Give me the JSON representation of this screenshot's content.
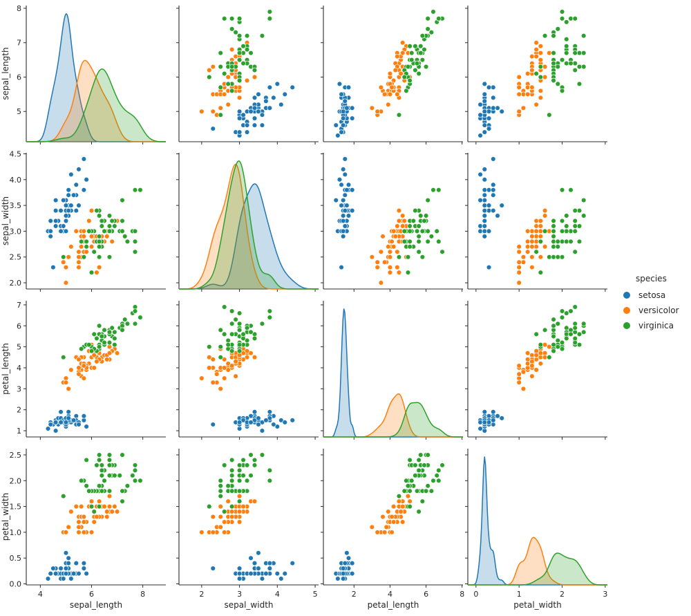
{
  "chart_data": {
    "type": "scatter",
    "subtype": "pairplot",
    "diagonal": "kde",
    "title": "",
    "variables": [
      "sepal_length",
      "sepal_width",
      "petal_length",
      "petal_width"
    ],
    "legend": {
      "title": "species",
      "position": "right",
      "entries": [
        {
          "label": "setosa",
          "color": "#1f77b4"
        },
        {
          "label": "versicolor",
          "color": "#ff7f0e"
        },
        {
          "label": "virginica",
          "color": "#2ca02c"
        }
      ]
    },
    "axes": {
      "sepal_length": {
        "x_range": [
          3.45,
          8.9
        ],
        "y_range": [
          4.12,
          8.08
        ],
        "x_ticks": [
          4,
          6,
          8
        ],
        "x_tick_labels": [
          "4",
          "6",
          "8"
        ],
        "y_ticks": [
          5,
          6,
          7,
          8
        ],
        "y_tick_labels": [
          "5",
          "6",
          "7",
          "8"
        ]
      },
      "sepal_width": {
        "x_range": [
          1.4,
          5.09
        ],
        "y_range": [
          1.88,
          4.52
        ],
        "x_ticks": [
          2,
          3,
          4,
          5
        ],
        "x_tick_labels": [
          "2",
          "3",
          "4",
          "5"
        ],
        "y_ticks": [
          2,
          2.5,
          3,
          3.5,
          4,
          4.5
        ],
        "y_tick_labels": [
          "2.0",
          "2.5",
          "3.0",
          "3.5",
          "4.0",
          "4.5"
        ]
      },
      "petal_length": {
        "x_range": [
          0.3,
          8.05
        ],
        "y_range": [
          0.705,
          7.195
        ],
        "x_ticks": [
          2,
          4,
          6,
          8
        ],
        "x_tick_labels": [
          "2",
          "4",
          "6",
          "8"
        ],
        "y_ticks": [
          1,
          2,
          3,
          4,
          5,
          6,
          7
        ],
        "y_tick_labels": [
          "1",
          "2",
          "3",
          "4",
          "5",
          "6",
          "7"
        ]
      },
      "petal_width": {
        "x_range": [
          -0.19,
          3.05
        ],
        "y_range": [
          -0.02,
          2.62
        ],
        "x_ticks": [
          0,
          1,
          2,
          3
        ],
        "x_tick_labels": [
          "0",
          "1",
          "2",
          "3"
        ],
        "y_ticks": [
          0,
          0.5,
          1,
          1.5,
          2,
          2.5
        ],
        "y_tick_labels": [
          "0.0",
          "0.5",
          "1.0",
          "1.5",
          "2.0",
          "2.5"
        ]
      }
    },
    "series": [
      {
        "name": "setosa",
        "color": "#1f77b4",
        "data": {
          "sepal_length": [
            5.1,
            4.9,
            4.7,
            4.6,
            5.0,
            5.4,
            4.6,
            5.0,
            4.4,
            4.9,
            5.4,
            4.8,
            4.8,
            4.3,
            5.8,
            5.7,
            5.4,
            5.1,
            5.7,
            5.1,
            5.4,
            5.1,
            4.6,
            5.1,
            4.8,
            5.0,
            5.0,
            5.2,
            5.2,
            4.7,
            4.8,
            5.4,
            5.2,
            5.5,
            4.9,
            5.0,
            5.5,
            4.9,
            4.4,
            5.1,
            5.0,
            4.5,
            4.4,
            5.0,
            5.1,
            4.8,
            5.1,
            4.6,
            5.3,
            5.0
          ],
          "sepal_width": [
            3.5,
            3.0,
            3.2,
            3.1,
            3.6,
            3.9,
            3.4,
            3.4,
            2.9,
            3.1,
            3.7,
            3.4,
            3.0,
            3.0,
            4.0,
            4.4,
            3.9,
            3.5,
            3.8,
            3.8,
            3.4,
            3.7,
            3.6,
            3.3,
            3.4,
            3.0,
            3.4,
            3.5,
            3.4,
            3.2,
            3.1,
            3.4,
            4.1,
            4.2,
            3.1,
            3.2,
            3.5,
            3.6,
            3.0,
            3.4,
            3.5,
            2.3,
            3.2,
            3.5,
            3.8,
            3.0,
            3.8,
            3.2,
            3.7,
            3.3
          ],
          "petal_length": [
            1.4,
            1.4,
            1.3,
            1.5,
            1.4,
            1.7,
            1.4,
            1.5,
            1.4,
            1.5,
            1.5,
            1.6,
            1.4,
            1.1,
            1.2,
            1.5,
            1.3,
            1.4,
            1.7,
            1.5,
            1.7,
            1.5,
            1.0,
            1.7,
            1.9,
            1.6,
            1.6,
            1.5,
            1.4,
            1.6,
            1.6,
            1.5,
            1.5,
            1.4,
            1.5,
            1.2,
            1.3,
            1.4,
            1.3,
            1.5,
            1.3,
            1.3,
            1.3,
            1.6,
            1.9,
            1.4,
            1.6,
            1.4,
            1.5,
            1.4
          ],
          "petal_width": [
            0.2,
            0.2,
            0.2,
            0.2,
            0.2,
            0.4,
            0.3,
            0.2,
            0.2,
            0.1,
            0.2,
            0.2,
            0.1,
            0.1,
            0.2,
            0.4,
            0.4,
            0.3,
            0.3,
            0.3,
            0.2,
            0.4,
            0.2,
            0.5,
            0.2,
            0.2,
            0.4,
            0.2,
            0.2,
            0.2,
            0.2,
            0.4,
            0.1,
            0.2,
            0.2,
            0.2,
            0.2,
            0.1,
            0.2,
            0.2,
            0.3,
            0.3,
            0.2,
            0.6,
            0.4,
            0.3,
            0.2,
            0.2,
            0.2,
            0.2
          ]
        }
      },
      {
        "name": "versicolor",
        "color": "#ff7f0e",
        "data": {
          "sepal_length": [
            7.0,
            6.4,
            6.9,
            5.5,
            6.5,
            5.7,
            6.3,
            4.9,
            6.6,
            5.2,
            5.0,
            5.9,
            6.0,
            6.1,
            5.6,
            6.7,
            5.6,
            5.8,
            6.2,
            5.6,
            5.9,
            6.1,
            6.3,
            6.1,
            6.4,
            6.6,
            6.8,
            6.7,
            6.0,
            5.7,
            5.5,
            5.5,
            5.8,
            6.0,
            5.4,
            6.0,
            6.7,
            6.3,
            5.6,
            5.5,
            5.5,
            6.1,
            5.8,
            5.0,
            5.6,
            5.7,
            5.7,
            6.2,
            5.1,
            5.7
          ],
          "sepal_width": [
            3.2,
            3.2,
            3.1,
            2.3,
            2.8,
            2.8,
            3.3,
            2.4,
            2.9,
            2.7,
            2.0,
            3.0,
            2.2,
            2.9,
            2.9,
            3.1,
            3.0,
            2.7,
            2.2,
            2.5,
            3.2,
            2.8,
            2.5,
            2.8,
            2.9,
            3.0,
            2.8,
            3.0,
            2.9,
            2.6,
            2.4,
            2.4,
            2.7,
            2.7,
            3.0,
            3.4,
            3.1,
            2.3,
            3.0,
            2.5,
            2.6,
            3.0,
            2.6,
            2.3,
            2.7,
            3.0,
            2.9,
            2.9,
            2.5,
            2.8
          ],
          "petal_length": [
            4.7,
            4.5,
            4.9,
            4.0,
            4.6,
            4.5,
            4.7,
            3.3,
            4.6,
            3.9,
            3.5,
            4.2,
            4.0,
            4.7,
            3.6,
            4.4,
            4.5,
            4.1,
            4.5,
            3.9,
            4.8,
            4.0,
            4.9,
            4.7,
            4.3,
            4.4,
            4.8,
            5.0,
            4.5,
            3.5,
            3.8,
            3.7,
            3.9,
            5.1,
            4.5,
            4.5,
            4.7,
            4.4,
            4.1,
            4.0,
            4.4,
            4.6,
            4.0,
            3.3,
            4.2,
            4.2,
            4.2,
            4.3,
            3.0,
            4.1
          ],
          "petal_width": [
            1.4,
            1.5,
            1.5,
            1.3,
            1.5,
            1.3,
            1.6,
            1.0,
            1.3,
            1.4,
            1.0,
            1.5,
            1.0,
            1.4,
            1.3,
            1.4,
            1.5,
            1.0,
            1.5,
            1.1,
            1.8,
            1.3,
            1.5,
            1.2,
            1.3,
            1.4,
            1.4,
            1.7,
            1.5,
            1.0,
            1.1,
            1.0,
            1.2,
            1.6,
            1.5,
            1.6,
            1.5,
            1.3,
            1.3,
            1.3,
            1.2,
            1.4,
            1.2,
            1.0,
            1.3,
            1.2,
            1.3,
            1.3,
            1.1,
            1.3
          ]
        }
      },
      {
        "name": "virginica",
        "color": "#2ca02c",
        "data": {
          "sepal_length": [
            6.3,
            5.8,
            7.1,
            6.3,
            6.5,
            7.6,
            4.9,
            7.3,
            6.7,
            7.2,
            6.5,
            6.4,
            6.8,
            5.7,
            5.8,
            6.4,
            6.5,
            7.7,
            7.7,
            6.0,
            6.9,
            5.6,
            7.7,
            6.3,
            6.7,
            7.2,
            6.2,
            6.1,
            6.4,
            7.2,
            7.4,
            7.9,
            6.4,
            6.3,
            6.1,
            7.7,
            6.3,
            6.4,
            6.0,
            6.9,
            6.7,
            6.9,
            5.8,
            6.8,
            6.7,
            6.7,
            6.3,
            6.5,
            6.2,
            5.9
          ],
          "sepal_width": [
            3.3,
            2.7,
            3.0,
            2.9,
            3.0,
            3.0,
            2.5,
            2.9,
            2.5,
            3.6,
            3.2,
            2.7,
            3.0,
            2.5,
            2.8,
            3.2,
            3.0,
            3.8,
            2.6,
            2.2,
            3.2,
            2.8,
            2.8,
            2.7,
            3.3,
            3.2,
            2.8,
            3.0,
            2.8,
            3.0,
            2.8,
            3.8,
            2.8,
            2.8,
            2.6,
            3.0,
            3.4,
            3.1,
            3.0,
            3.1,
            3.1,
            3.1,
            2.7,
            3.2,
            3.3,
            3.0,
            2.5,
            3.0,
            3.4,
            3.0
          ],
          "petal_length": [
            6.0,
            5.1,
            5.9,
            5.6,
            5.8,
            6.6,
            4.5,
            6.3,
            5.8,
            6.1,
            5.1,
            5.3,
            5.5,
            5.0,
            5.1,
            5.3,
            5.5,
            6.7,
            6.9,
            5.0,
            5.7,
            4.9,
            6.7,
            4.9,
            5.7,
            6.0,
            4.8,
            4.9,
            5.6,
            5.8,
            6.1,
            6.4,
            5.6,
            5.1,
            5.6,
            6.1,
            5.6,
            5.5,
            4.8,
            5.4,
            5.6,
            5.1,
            5.1,
            5.9,
            5.7,
            5.2,
            5.0,
            5.2,
            5.4,
            5.1
          ],
          "petal_width": [
            2.5,
            1.9,
            2.1,
            1.8,
            2.2,
            2.1,
            1.7,
            1.8,
            1.8,
            2.5,
            2.0,
            1.9,
            2.1,
            2.0,
            2.4,
            2.3,
            1.8,
            2.2,
            2.3,
            1.5,
            2.3,
            2.0,
            2.0,
            1.8,
            2.1,
            1.8,
            1.8,
            1.8,
            2.1,
            1.6,
            1.9,
            2.0,
            2.2,
            1.5,
            1.4,
            2.3,
            2.4,
            1.8,
            1.8,
            2.1,
            2.4,
            2.3,
            1.9,
            2.3,
            2.5,
            2.3,
            1.9,
            2.0,
            2.3,
            1.8
          ]
        }
      }
    ],
    "style": {
      "spine_color": "#2b2b2b",
      "text_color": "#262626",
      "background": "#ffffff",
      "kde_fill_opacity": 0.25,
      "marker_edge_color": "#ffffff"
    }
  }
}
